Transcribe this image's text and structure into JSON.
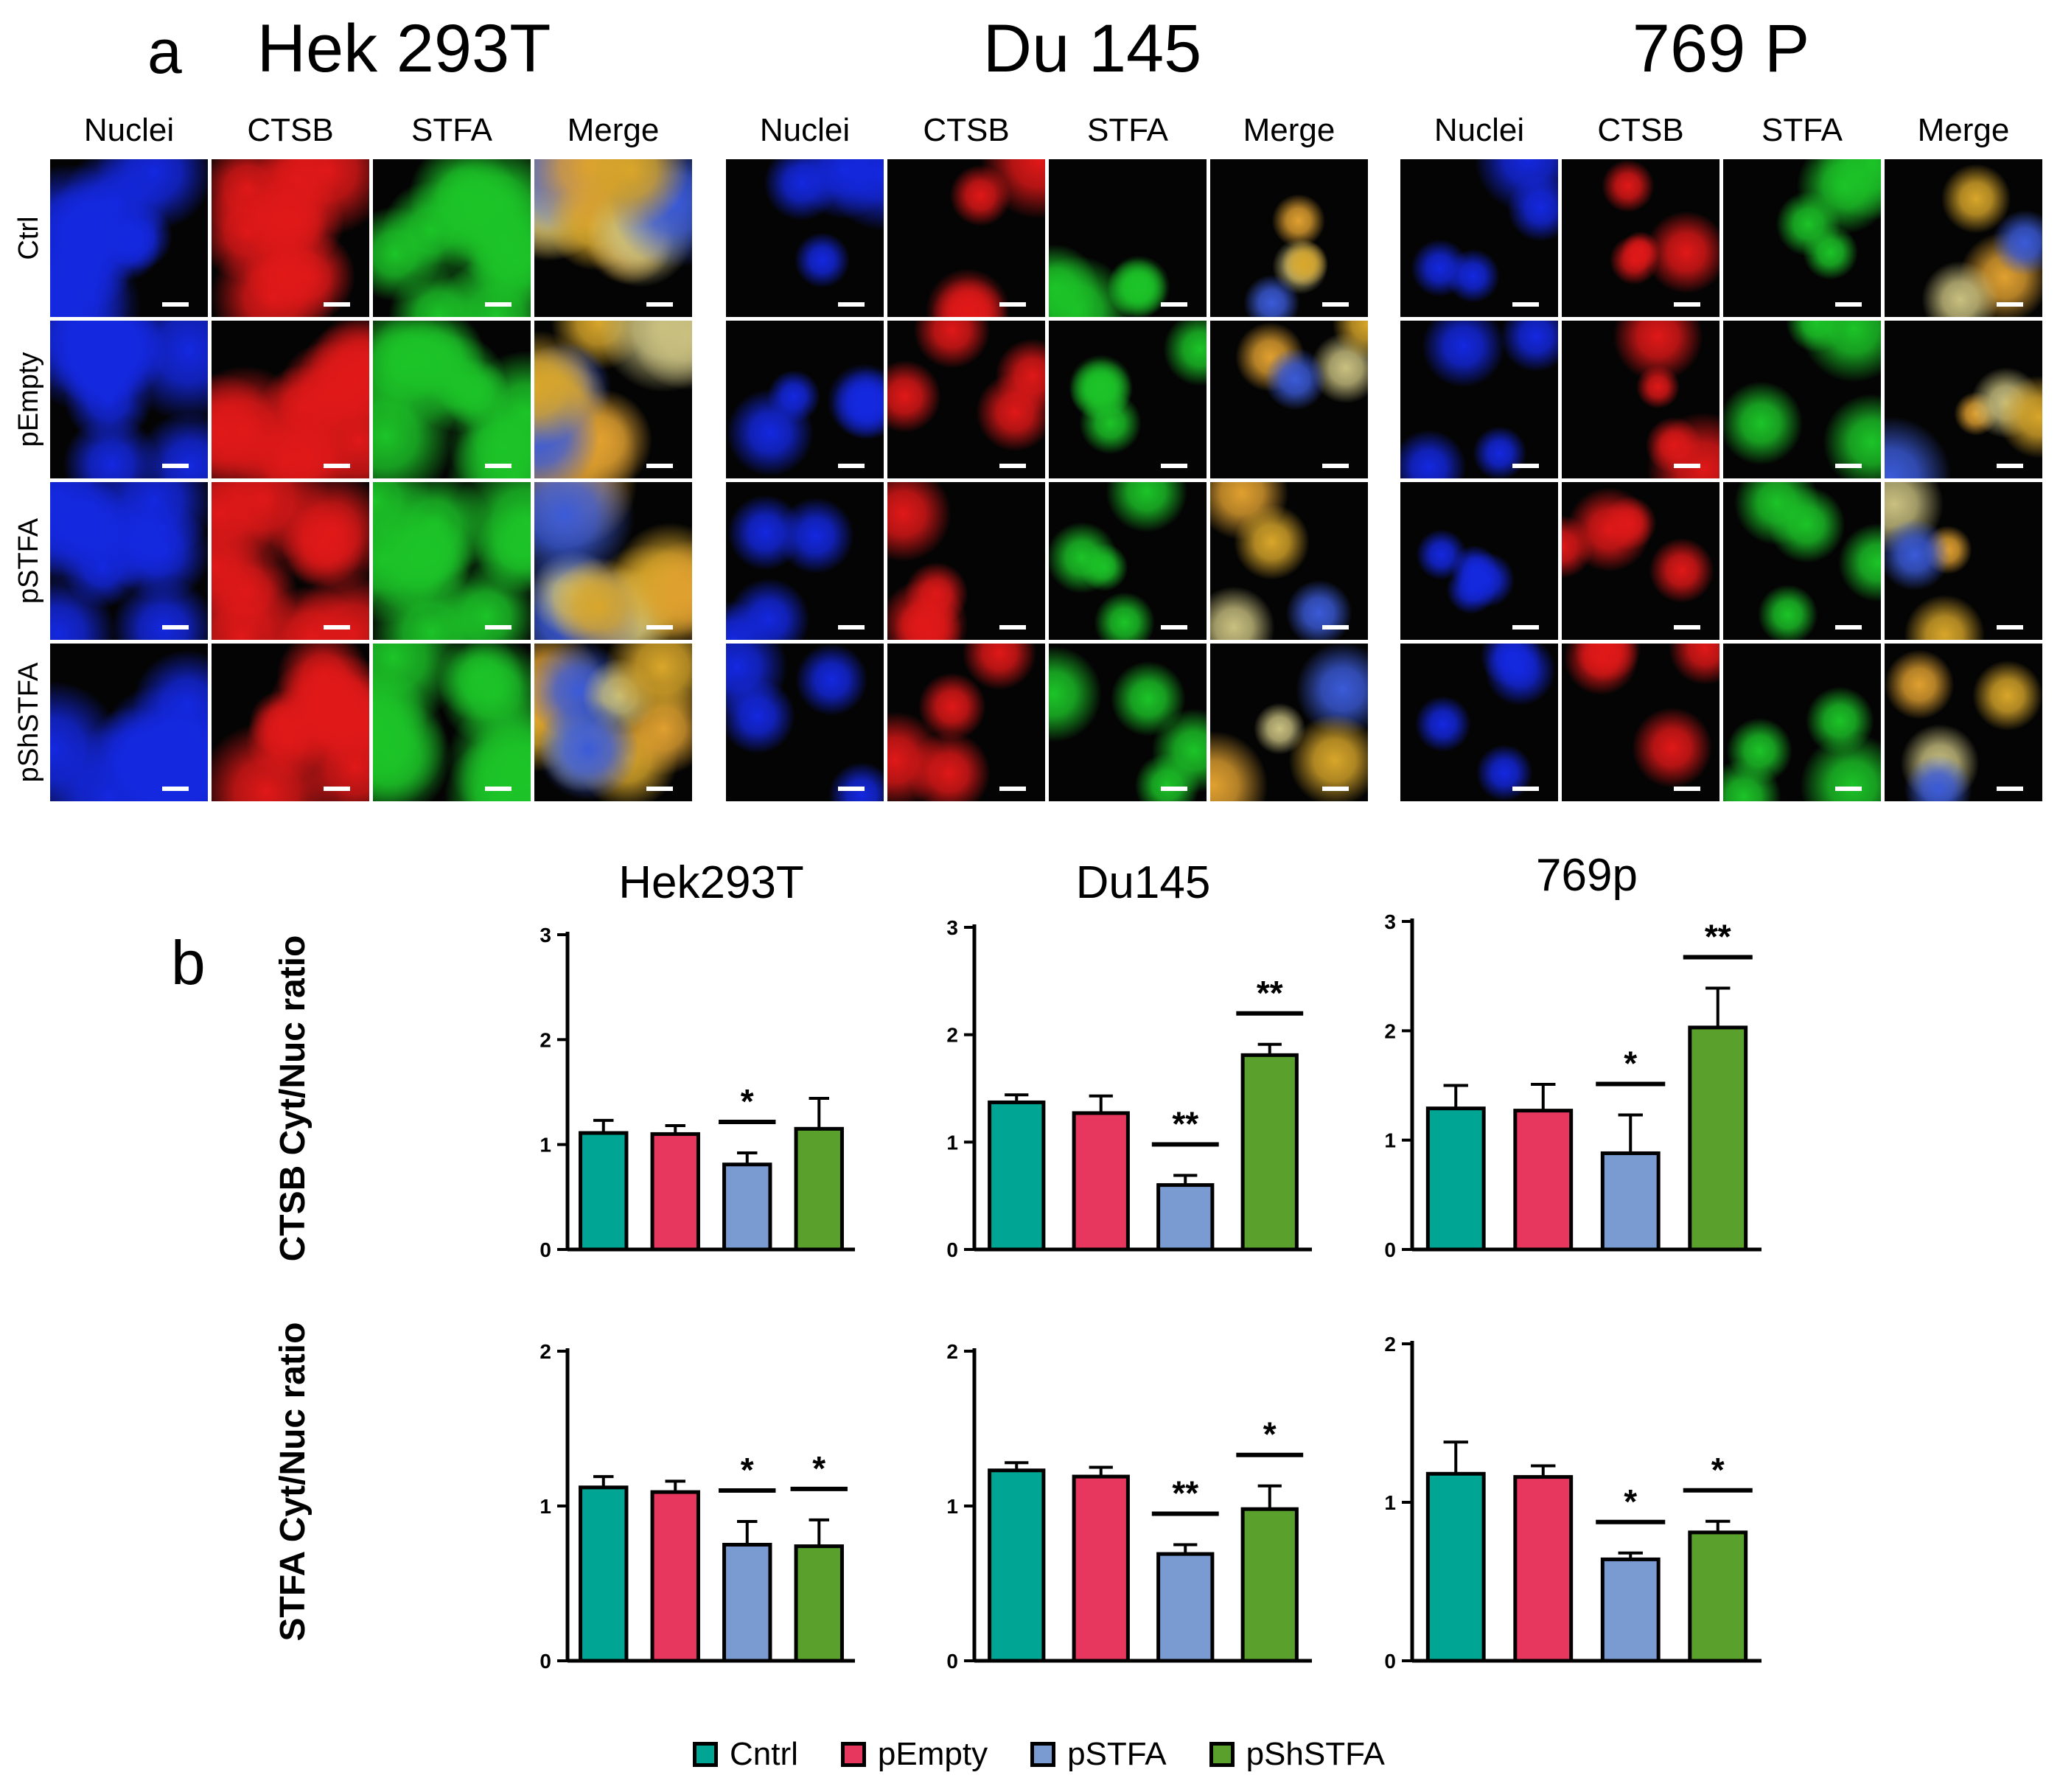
{
  "panel_a": {
    "letter": "a",
    "cell_lines": [
      "Hek 293T",
      "Du 145",
      "769 P"
    ],
    "channels": [
      "Nuclei",
      "CTSB",
      "STFA",
      "Merge"
    ],
    "conditions": [
      "Ctrl",
      "pEmpty",
      "pSTFA",
      "pShSTFA"
    ]
  },
  "panel_b": {
    "letter": "b",
    "legend": [
      {
        "label": "Cntrl",
        "color": "#00a693"
      },
      {
        "label": "pEmpty",
        "color": "#e8375e"
      },
      {
        "label": "pSTFA",
        "color": "#7a9bd1"
      },
      {
        "label": "pShSTFA",
        "color": "#5aa02c"
      }
    ],
    "row_ylabels": [
      "CTSB Cyt/Nuc ratio",
      "STFA Cyt/Nuc ratio"
    ]
  },
  "chart_data": [
    {
      "type": "bar",
      "title": "Hek293T",
      "ylabel": "CTSB Cyt/Nuc ratio",
      "categories": [
        "Cntrl",
        "pEmpty",
        "pSTFA",
        "pShSTFA"
      ],
      "values": [
        1.11,
        1.1,
        0.81,
        1.15
      ],
      "errors": [
        0.12,
        0.08,
        0.11,
        0.29
      ],
      "ylim": [
        0,
        3
      ],
      "yticks": [
        "0",
        "1",
        "2",
        "3"
      ],
      "significance": [
        {
          "from": 2,
          "to": 2,
          "label": "*"
        }
      ]
    },
    {
      "type": "bar",
      "title": "Du145",
      "ylabel": "",
      "categories": [
        "Cntrl",
        "pEmpty",
        "pSTFA",
        "pShSTFA"
      ],
      "values": [
        1.37,
        1.27,
        0.6,
        1.81
      ],
      "errors": [
        0.07,
        0.16,
        0.09,
        0.1
      ],
      "ylim": [
        0,
        3
      ],
      "yticks": [
        "0",
        "1",
        "2",
        "3"
      ],
      "significance": [
        {
          "from": 2,
          "to": 2,
          "label": "**"
        },
        {
          "from": 3,
          "to": 3,
          "label": "**"
        }
      ]
    },
    {
      "type": "bar",
      "title": "769p",
      "ylabel": "",
      "categories": [
        "Cntrl",
        "pEmpty",
        "pSTFA",
        "pShSTFA"
      ],
      "values": [
        1.29,
        1.27,
        0.88,
        2.03
      ],
      "errors": [
        0.21,
        0.24,
        0.35,
        0.36
      ],
      "ylim": [
        0,
        3
      ],
      "yticks": [
        "0",
        "1",
        "2",
        "3"
      ],
      "significance": [
        {
          "from": 2,
          "to": 2,
          "label": "*"
        },
        {
          "from": 3,
          "to": 3,
          "label": "**"
        }
      ]
    },
    {
      "type": "bar",
      "title": "",
      "ylabel": "STFA Cyt/Nuc ratio",
      "categories": [
        "Cntrl",
        "pEmpty",
        "pSTFA",
        "pShSTFA"
      ],
      "values": [
        1.12,
        1.09,
        0.75,
        0.74
      ],
      "errors": [
        0.07,
        0.07,
        0.15,
        0.17
      ],
      "ylim": [
        0,
        2
      ],
      "yticks": [
        "0",
        "1",
        "2"
      ],
      "significance": [
        {
          "from": 2,
          "to": 2,
          "label": "*"
        },
        {
          "from": 3,
          "to": 3,
          "label": "*"
        }
      ]
    },
    {
      "type": "bar",
      "title": "",
      "ylabel": "",
      "categories": [
        "Cntrl",
        "pEmpty",
        "pSTFA",
        "pShSTFA"
      ],
      "values": [
        1.23,
        1.19,
        0.69,
        0.98
      ],
      "errors": [
        0.05,
        0.06,
        0.06,
        0.15
      ],
      "ylim": [
        0,
        2
      ],
      "yticks": [
        "0",
        "1",
        "2"
      ],
      "significance": [
        {
          "from": 2,
          "to": 2,
          "label": "**"
        },
        {
          "from": 3,
          "to": 3,
          "label": "*"
        }
      ]
    },
    {
      "type": "bar",
      "title": "",
      "ylabel": "",
      "categories": [
        "Cntrl",
        "pEmpty",
        "pSTFA",
        "pShSTFA"
      ],
      "values": [
        1.18,
        1.16,
        0.64,
        0.81
      ],
      "errors": [
        0.2,
        0.07,
        0.04,
        0.07
      ],
      "ylim": [
        0,
        2
      ],
      "yticks": [
        "0",
        "1",
        "2"
      ],
      "significance": [
        {
          "from": 2,
          "to": 2,
          "label": "*"
        },
        {
          "from": 3,
          "to": 3,
          "label": "*"
        }
      ]
    }
  ]
}
